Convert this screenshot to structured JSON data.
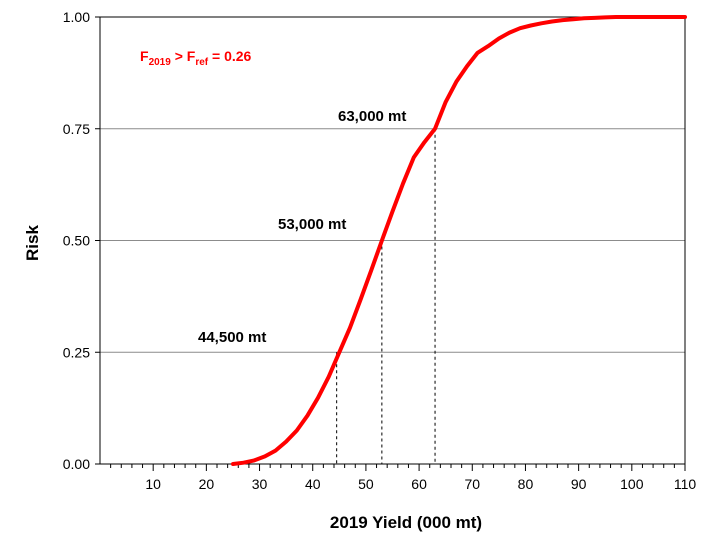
{
  "chart_data": {
    "type": "line",
    "xlabel": "2019 Yield (000 mt)",
    "ylabel": "Risk",
    "xlim": [
      0,
      110
    ],
    "ylim": [
      0,
      1
    ],
    "x_ticks": [
      10,
      20,
      30,
      40,
      50,
      60,
      70,
      80,
      90,
      100,
      110
    ],
    "y_ticks": [
      0,
      0.25,
      0.5,
      0.75,
      1
    ],
    "x_tick_labels": [
      "10",
      "20",
      "30",
      "40",
      "50",
      "60",
      "70",
      "80",
      "90",
      "100",
      "110"
    ],
    "y_tick_labels": [
      "0.00",
      "0.25",
      "0.50",
      "0.75",
      "1.00"
    ],
    "grid": "horizontal",
    "line_color": "#ff0000",
    "series": [
      {
        "x": [
          25,
          27,
          29,
          31,
          33,
          35,
          37,
          39,
          41,
          43,
          45,
          47,
          49,
          51,
          53,
          55,
          57,
          59,
          61,
          63,
          65,
          67,
          69,
          71,
          73,
          75,
          77,
          79,
          81,
          83,
          85,
          87,
          89,
          91,
          93,
          95,
          97,
          99,
          101,
          103,
          110
        ],
        "y": [
          0.0,
          0.003,
          0.008,
          0.017,
          0.03,
          0.05,
          0.075,
          0.108,
          0.148,
          0.195,
          0.25,
          0.305,
          0.368,
          0.433,
          0.5,
          0.565,
          0.628,
          0.686,
          0.72,
          0.75,
          0.81,
          0.855,
          0.89,
          0.92,
          0.935,
          0.952,
          0.965,
          0.975,
          0.981,
          0.986,
          0.99,
          0.993,
          0.995,
          0.997,
          0.998,
          0.999,
          1.0,
          1.0,
          1.0,
          1.0,
          1.0
        ]
      }
    ],
    "reference_lines": [
      {
        "x": 44.5,
        "y": 0.25,
        "label": "44,500 mt"
      },
      {
        "x": 53,
        "y": 0.5,
        "label": "53,000 mt"
      },
      {
        "x": 63,
        "y": 0.75,
        "label": "63,000 mt"
      }
    ],
    "annotation": {
      "color": "#ff0000",
      "f_main": "F",
      "f_sub1": "2019",
      "gt": " > F",
      "f_sub2": "ref",
      "equals": " =  0.26"
    }
  }
}
